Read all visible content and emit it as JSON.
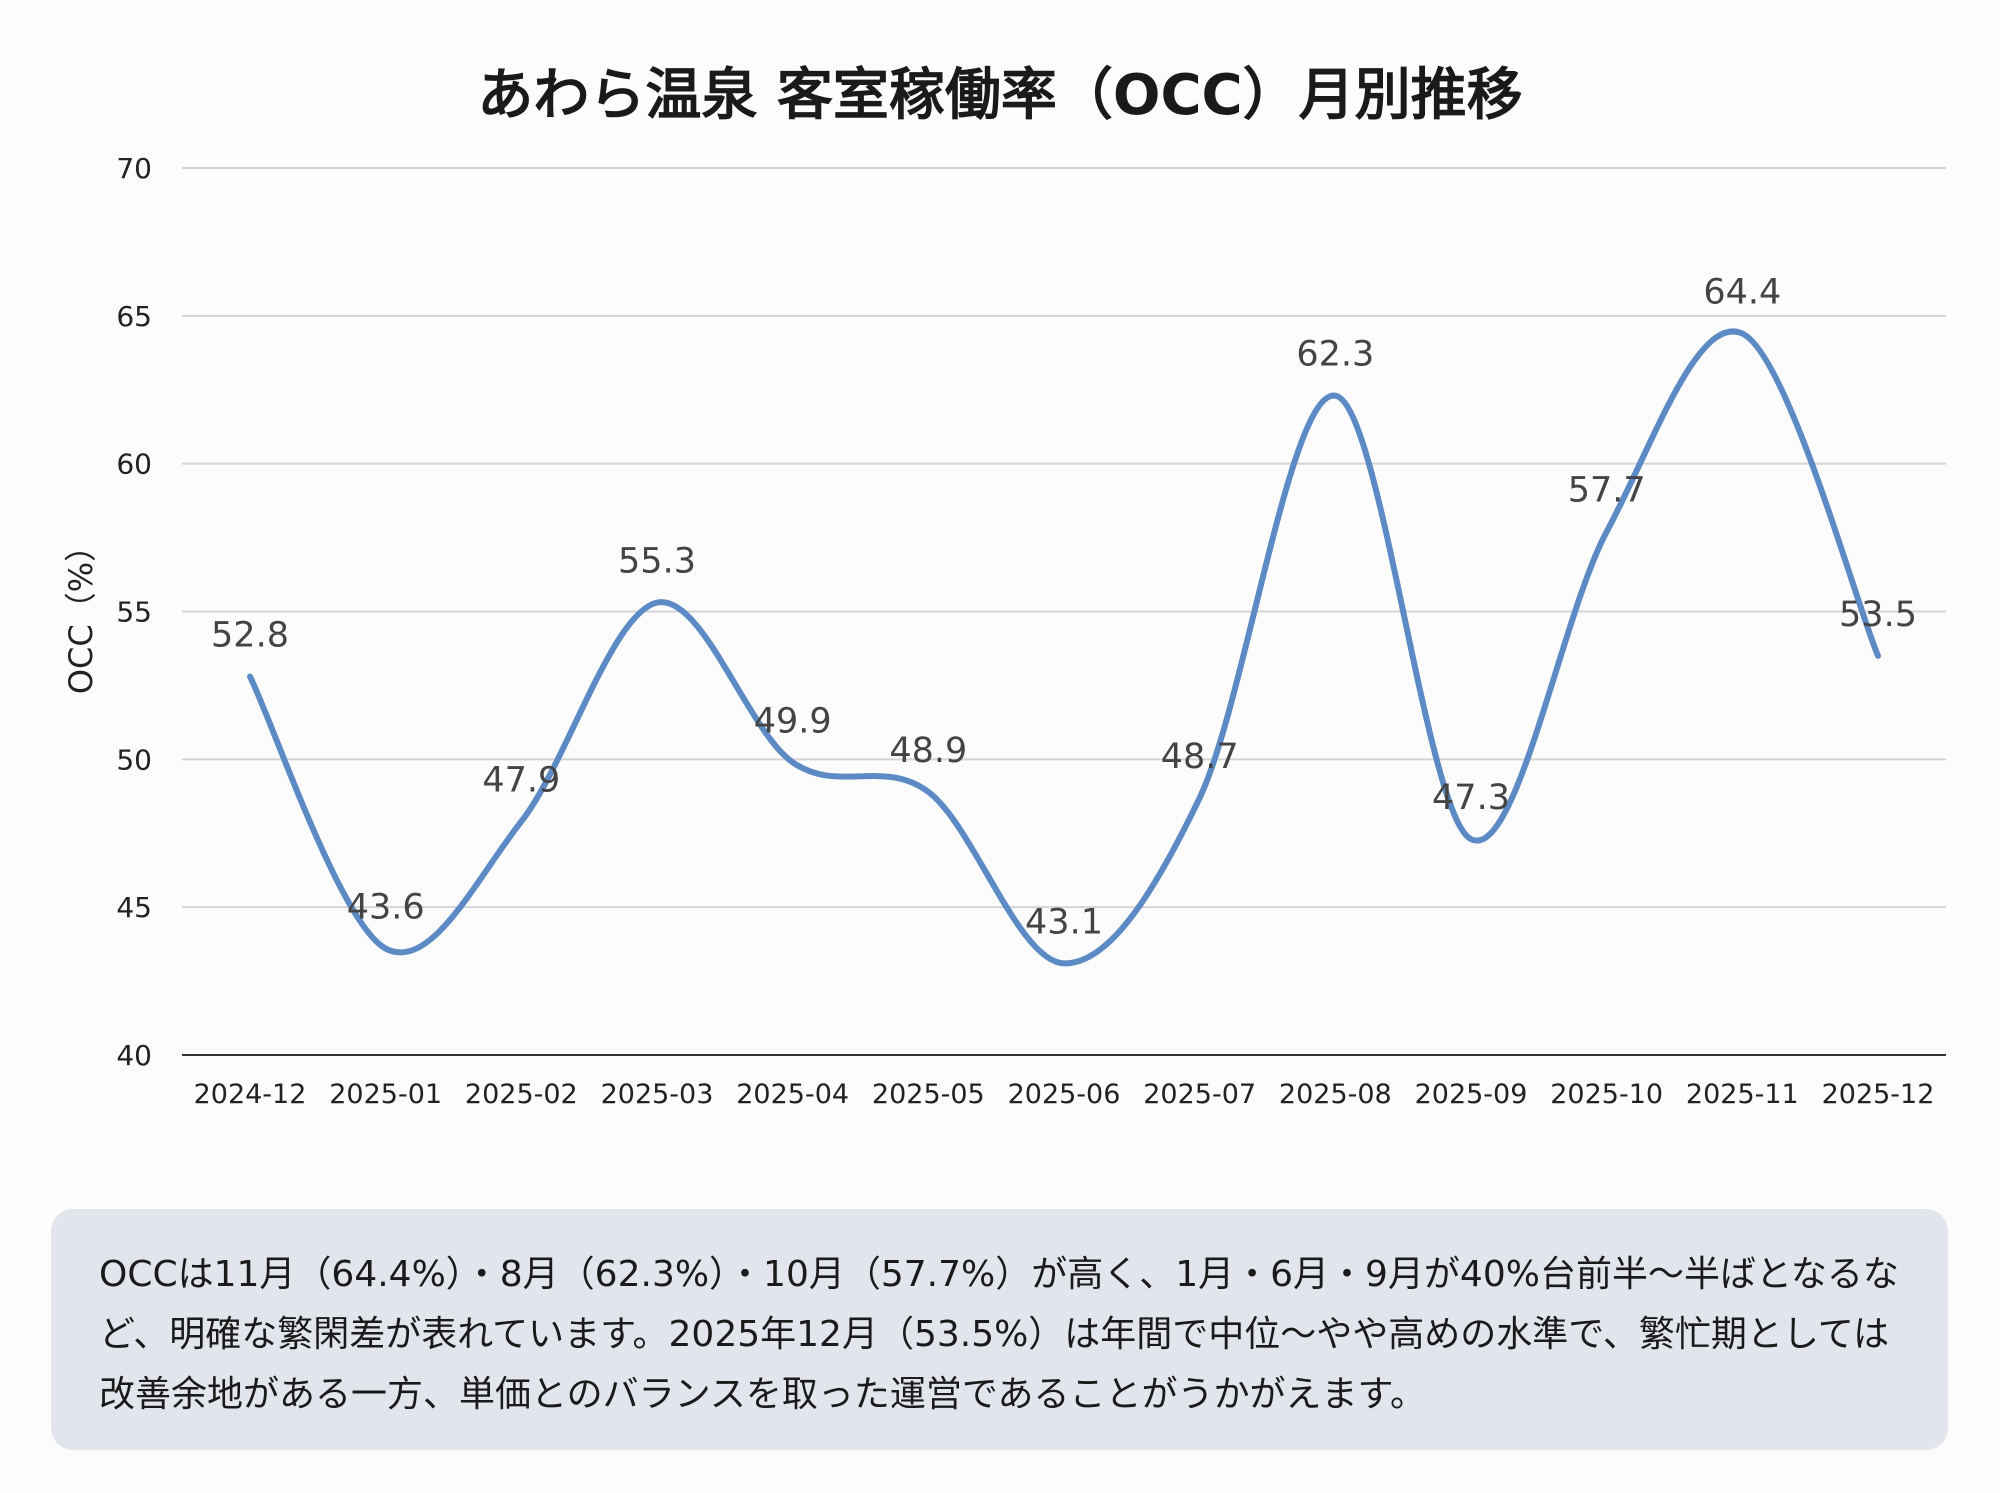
{
  "chart_data": {
    "type": "line",
    "title": "あわら温泉 客室稼働率（OCC）月別推移",
    "xlabel": "",
    "ylabel": "OCC（%）",
    "categories": [
      "2024-12",
      "2025-01",
      "2025-02",
      "2025-03",
      "2025-04",
      "2025-05",
      "2025-06",
      "2025-07",
      "2025-08",
      "2025-09",
      "2025-10",
      "2025-11",
      "2025-12"
    ],
    "values": [
      52.8,
      43.6,
      47.9,
      55.3,
      49.9,
      48.9,
      43.1,
      48.7,
      62.3,
      47.3,
      57.7,
      64.4,
      53.5
    ],
    "data_labels": [
      "52.8",
      "43.6",
      "47.9",
      "55.3",
      "49.9",
      "48.9",
      "43.1",
      "48.7",
      "62.3",
      "47.3",
      "57.7",
      "64.4",
      "53.5"
    ],
    "ylim": [
      40,
      70
    ],
    "yticks": [
      "40",
      "45",
      "50",
      "55",
      "60",
      "65",
      "70"
    ],
    "grid": true,
    "smooth": true,
    "line_color": "#5b8ac4"
  },
  "note": "OCCは11月（64.4%）・8月（62.3%）・10月（57.7%）が高く、1月・6月・9月が40%台前半〜半ばとなるなど、明確な繁閑差が表れています。2025年12月（53.5%）は年間で中位〜やや高めの水準で、繁忙期としては改善余地がある一方、単価とのバランスを取った運営であることがうかがえます。"
}
